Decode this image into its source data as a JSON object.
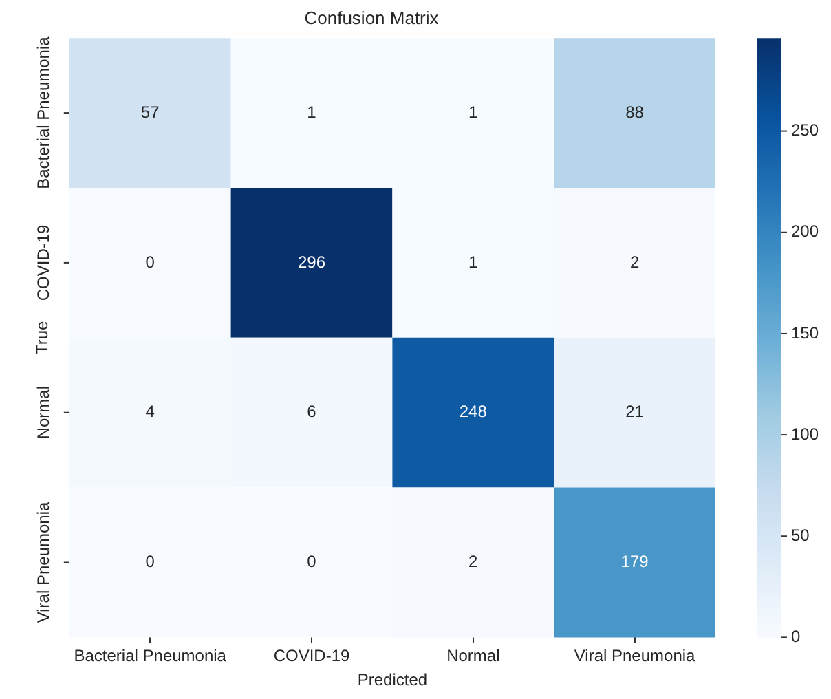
{
  "chart_data": {
    "type": "heatmap",
    "title": "Confusion Matrix",
    "xlabel": "Predicted",
    "ylabel": "True",
    "categories": [
      "Bacterial Pneumonia",
      "COVID-19",
      "Normal",
      "Viral Pneumonia"
    ],
    "y_categories": [
      "Bacterial Pneumonia",
      "COVID-19",
      "Normal",
      "Viral Pneumonia"
    ],
    "cells": [
      [
        57,
        1,
        1,
        88
      ],
      [
        0,
        296,
        1,
        2
      ],
      [
        4,
        6,
        248,
        21
      ],
      [
        0,
        0,
        2,
        179
      ]
    ],
    "data_labels": true,
    "clim": [
      0,
      296
    ],
    "cticks": [
      0,
      50,
      100,
      150,
      200,
      250
    ]
  }
}
